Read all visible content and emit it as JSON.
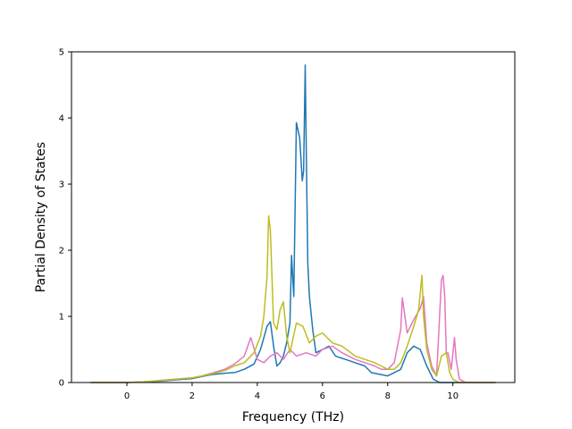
{
  "chart_data": {
    "type": "line",
    "title": "",
    "xlabel": "Frequency (THz)",
    "ylabel": "Partial Density of States",
    "xlim": [
      -1.7,
      11.9
    ],
    "ylim": [
      0,
      5
    ],
    "xticks": [
      0,
      2,
      4,
      6,
      8,
      10
    ],
    "yticks": [
      0,
      1,
      2,
      3,
      4,
      5
    ],
    "grid": false,
    "legend": "none",
    "series": [
      {
        "color": "#1f77b4",
        "x": [
          -1.1,
          0.0,
          0.5,
          1.0,
          1.5,
          2.0,
          2.3,
          2.6,
          3.0,
          3.3,
          3.6,
          3.9,
          4.1,
          4.3,
          4.4,
          4.5,
          4.6,
          4.7,
          4.8,
          4.9,
          5.0,
          5.05,
          5.12,
          5.2,
          5.3,
          5.38,
          5.42,
          5.47,
          5.5,
          5.55,
          5.6,
          5.7,
          5.8,
          6.0,
          6.2,
          6.4,
          6.7,
          7.0,
          7.3,
          7.5,
          7.8,
          8.0,
          8.2,
          8.4,
          8.6,
          8.8,
          9.0,
          9.2,
          9.4,
          9.6,
          9.8,
          10.0,
          10.2,
          10.4,
          10.8,
          11.3
        ],
        "y": [
          0,
          0,
          0.01,
          0.02,
          0.04,
          0.06,
          0.09,
          0.12,
          0.14,
          0.15,
          0.2,
          0.28,
          0.5,
          0.85,
          0.92,
          0.55,
          0.25,
          0.3,
          0.4,
          0.6,
          0.9,
          1.92,
          1.3,
          3.93,
          3.7,
          3.05,
          3.2,
          4.8,
          3.6,
          1.8,
          1.3,
          0.8,
          0.45,
          0.5,
          0.55,
          0.4,
          0.35,
          0.3,
          0.25,
          0.15,
          0.12,
          0.1,
          0.15,
          0.2,
          0.45,
          0.55,
          0.5,
          0.25,
          0.05,
          0.0,
          0.0,
          0.0,
          0.0,
          0.0,
          0.0,
          0.0
        ]
      },
      {
        "color": "#e377c2",
        "x": [
          -1.1,
          0.0,
          0.5,
          1.0,
          1.5,
          2.0,
          2.3,
          2.6,
          3.0,
          3.3,
          3.6,
          3.8,
          4.0,
          4.2,
          4.4,
          4.6,
          4.8,
          5.0,
          5.2,
          5.5,
          5.8,
          6.0,
          6.3,
          6.6,
          7.0,
          7.3,
          7.6,
          7.8,
          8.0,
          8.2,
          8.4,
          8.45,
          8.6,
          8.8,
          9.0,
          9.1,
          9.2,
          9.35,
          9.5,
          9.65,
          9.7,
          9.75,
          9.8,
          9.85,
          9.95,
          10.05,
          10.1,
          10.2,
          10.4,
          10.8,
          11.3
        ],
        "y": [
          0,
          0,
          0.01,
          0.03,
          0.05,
          0.07,
          0.1,
          0.14,
          0.2,
          0.28,
          0.4,
          0.68,
          0.35,
          0.3,
          0.4,
          0.45,
          0.35,
          0.5,
          0.4,
          0.45,
          0.4,
          0.5,
          0.55,
          0.45,
          0.35,
          0.3,
          0.25,
          0.2,
          0.2,
          0.3,
          0.8,
          1.28,
          0.75,
          0.95,
          1.12,
          1.3,
          0.6,
          0.25,
          0.1,
          1.55,
          1.62,
          1.3,
          0.45,
          0.45,
          0.2,
          0.68,
          0.35,
          0.05,
          0.0,
          0.0,
          0.0
        ]
      },
      {
        "color": "#bcbd22",
        "x": [
          -1.1,
          0.0,
          0.5,
          1.0,
          1.5,
          2.0,
          2.3,
          2.6,
          3.0,
          3.3,
          3.6,
          3.9,
          4.1,
          4.2,
          4.3,
          4.35,
          4.4,
          4.5,
          4.6,
          4.7,
          4.8,
          4.9,
          5.0,
          5.2,
          5.4,
          5.6,
          5.8,
          6.0,
          6.3,
          6.6,
          7.0,
          7.3,
          7.6,
          7.8,
          8.0,
          8.2,
          8.4,
          8.6,
          8.8,
          8.95,
          9.05,
          9.1,
          9.2,
          9.35,
          9.5,
          9.65,
          9.8,
          9.9,
          10.0,
          10.2,
          10.5,
          11.3
        ],
        "y": [
          0,
          0,
          0.01,
          0.03,
          0.05,
          0.07,
          0.1,
          0.13,
          0.18,
          0.25,
          0.3,
          0.45,
          0.7,
          1.0,
          1.6,
          2.52,
          2.3,
          0.9,
          0.8,
          1.1,
          1.22,
          0.7,
          0.45,
          0.9,
          0.85,
          0.6,
          0.7,
          0.75,
          0.6,
          0.55,
          0.4,
          0.35,
          0.3,
          0.25,
          0.2,
          0.2,
          0.3,
          0.55,
          0.85,
          1.1,
          1.62,
          1.0,
          0.5,
          0.2,
          0.1,
          0.4,
          0.45,
          0.15,
          0.05,
          0.0,
          0.0,
          0.0
        ]
      }
    ]
  }
}
